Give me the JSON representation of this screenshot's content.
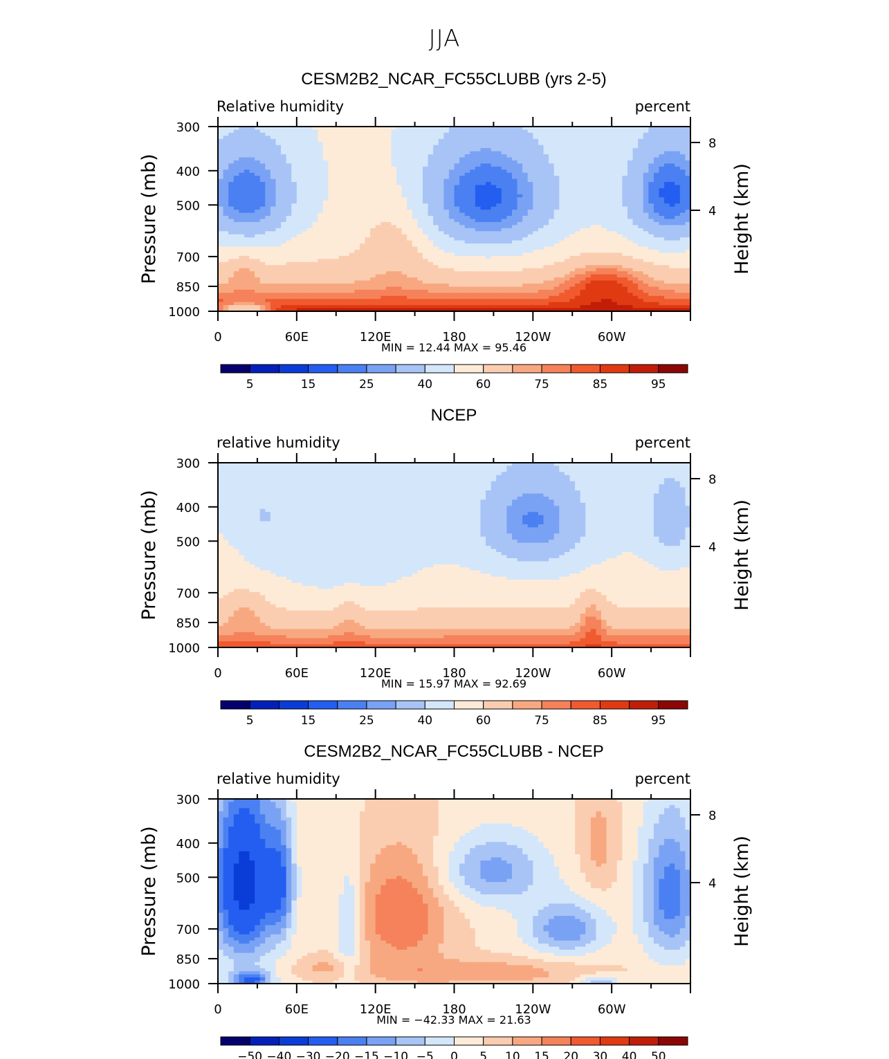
{
  "title": "JJA",
  "chart_data": [
    {
      "type": "heatmap",
      "title": "CESM2B2_NCAR_FC55CLUBB (yrs 2-5)",
      "left_label": "Relative humidity",
      "right_label": "percent",
      "ylabel": "Pressure (mb)",
      "ylabel_right": "Height (km)",
      "x_ticks": [
        "0",
        "60E",
        "120E",
        "180",
        "120W",
        "60W"
      ],
      "y_ticks": [
        "300",
        "400",
        "500",
        "700",
        "850",
        "1000"
      ],
      "height_ticks": [
        "8",
        "4"
      ],
      "min_max": "MIN =   12.44   MAX =   95.46",
      "colorbar_labels": [
        "5",
        "15",
        "25",
        "40",
        "60",
        "75",
        "85",
        "95"
      ],
      "xlim": [
        0,
        360
      ],
      "ylim": [
        1000,
        300
      ],
      "colormap": "sequential",
      "field_description": "zonal-vertical section of relative humidity, moist boundary layer, dry mid-troposphere over 0-40E, 160E-130W and 40W-20W",
      "range": [
        12.44,
        95.46
      ]
    },
    {
      "type": "heatmap",
      "title": "NCEP",
      "left_label": "relative humidity",
      "right_label": "percent",
      "ylabel": "Pressure (mb)",
      "ylabel_right": "Height (km)",
      "x_ticks": [
        "0",
        "60E",
        "120E",
        "180",
        "120W",
        "60W"
      ],
      "y_ticks": [
        "300",
        "400",
        "500",
        "700",
        "850",
        "1000"
      ],
      "height_ticks": [
        "8",
        "4"
      ],
      "min_max": "MIN =   15.97   MAX =   92.69",
      "colorbar_labels": [
        "5",
        "15",
        "25",
        "40",
        "60",
        "75",
        "85",
        "95"
      ],
      "xlim": [
        0,
        360
      ],
      "ylim": [
        1000,
        300
      ],
      "colormap": "sequential",
      "range": [
        15.97,
        92.69
      ]
    },
    {
      "type": "heatmap",
      "title": "CESM2B2_NCAR_FC55CLUBB - NCEP",
      "left_label": "relative humidity",
      "right_label": "percent",
      "ylabel": "Pressure (mb)",
      "ylabel_right": "Height (km)",
      "x_ticks": [
        "0",
        "60E",
        "120E",
        "180",
        "120W",
        "60W"
      ],
      "y_ticks": [
        "300",
        "400",
        "500",
        "700",
        "850",
        "1000"
      ],
      "height_ticks": [
        "8",
        "4"
      ],
      "min_max": "MIN = −42.33   MAX =   21.63",
      "colorbar_labels": [
        "−50",
        "−40",
        "−30",
        "−20",
        "−15",
        "−10",
        "−5",
        "0",
        "5",
        "10",
        "15",
        "20",
        "30",
        "40",
        "50"
      ],
      "xlim": [
        0,
        360
      ],
      "ylim": [
        1000,
        300
      ],
      "colormap": "diverging",
      "range": [
        -42.33,
        21.63
      ]
    }
  ],
  "colors": {
    "sequential": [
      "#04006e",
      "#0420bb",
      "#0a3cd8",
      "#245ef0",
      "#4a80f2",
      "#7aa2f4",
      "#a8c4f6",
      "#d4e6fa",
      "#fdebd8",
      "#fbcdb0",
      "#f8a880",
      "#f5825a",
      "#f05a2e",
      "#e03a12",
      "#c01e08",
      "#8c0606"
    ],
    "diverging": [
      "#04006e",
      "#0420bb",
      "#0a3cd8",
      "#245ef0",
      "#4a80f2",
      "#7aa2f4",
      "#a8c4f6",
      "#d4e6fa",
      "#fdebd8",
      "#fbcdb0",
      "#f8a880",
      "#f5825a",
      "#f05a2e",
      "#e03a12",
      "#c01e08",
      "#8c0606"
    ]
  }
}
